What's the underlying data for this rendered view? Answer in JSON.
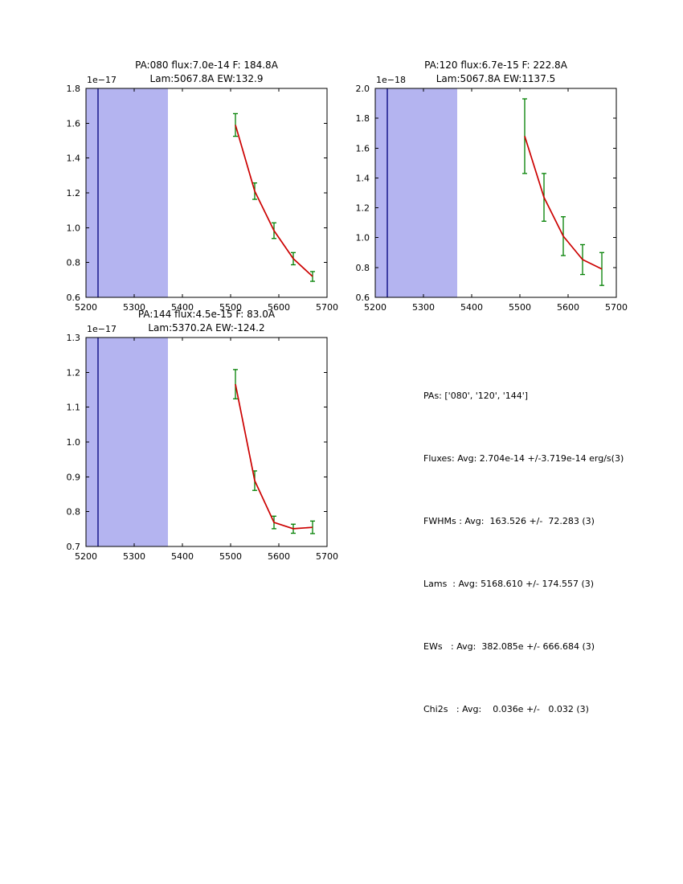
{
  "figure": {
    "background": "#ffffff"
  },
  "summary": {
    "lines": [
      "PAs: ['080', '120', '144']",
      "Fluxes: Avg: 2.704e-14 +/-3.719e-14 erg/s(3)",
      "FWHMs : Avg:  163.526 +/-  72.283 (3)",
      "Lams  : Avg: 5168.610 +/- 174.557 (3)",
      "EWs   : Avg:  382.085e +/- 666.684 (3)",
      "Chi2s   : Avg:    0.036e +/-   0.032 (3)"
    ]
  },
  "chart_data": [
    {
      "type": "line",
      "title": "PA:080 flux:7.0e-14 F: 184.8A",
      "subtitle": "Lam:5067.8A EW:132.9",
      "y_offset_label": "1e−17",
      "xlim": [
        5200,
        5700
      ],
      "ylim": [
        0.6,
        1.8
      ],
      "xtick_vals": [
        5200,
        5300,
        5400,
        5500,
        5600,
        5700
      ],
      "xtick_labels": [
        "5200",
        "5300",
        "5400",
        "5500",
        "5600",
        "5700"
      ],
      "ytick_vals": [
        0.6,
        0.8,
        1.0,
        1.2,
        1.4,
        1.6,
        1.8
      ],
      "ytick_labels": [
        "0.6",
        "0.8",
        "1.0",
        "1.2",
        "1.4",
        "1.6",
        "1.8"
      ],
      "grid": false,
      "shaded_band": {
        "x0": 5200,
        "x1": 5370,
        "color": "#b4b4f0"
      },
      "vline": {
        "x": 5225,
        "color": "#202090"
      },
      "series": {
        "name": "spectrum-pa080",
        "x": [
          5510,
          5550,
          5590,
          5630,
          5670
        ],
        "y": [
          1.59,
          1.21,
          0.983,
          0.822,
          0.72
        ],
        "yerr": [
          0.065,
          0.047,
          0.045,
          0.035,
          0.028
        ],
        "line_color": "#cc0000",
        "error_color": "#007f00"
      }
    },
    {
      "type": "line",
      "title": "PA:120 flux:6.7e-15 F: 222.8A",
      "subtitle": "Lam:5067.8A EW:1137.5",
      "y_offset_label": "1e−18",
      "xlim": [
        5200,
        5700
      ],
      "ylim": [
        0.6,
        2.0
      ],
      "xtick_vals": [
        5200,
        5300,
        5400,
        5500,
        5600,
        5700
      ],
      "xtick_labels": [
        "5200",
        "5300",
        "5400",
        "5500",
        "5600",
        "5700"
      ],
      "ytick_vals": [
        0.6,
        0.8,
        1.0,
        1.2,
        1.4,
        1.6,
        1.8,
        2.0
      ],
      "ytick_labels": [
        "0.6",
        "0.8",
        "1.0",
        "1.2",
        "1.4",
        "1.6",
        "1.8",
        "2.0"
      ],
      "grid": false,
      "shaded_band": {
        "x0": 5200,
        "x1": 5370,
        "color": "#b4b4f0"
      },
      "vline": {
        "x": 5225,
        "color": "#202090"
      },
      "series": {
        "name": "spectrum-pa120",
        "x": [
          5510,
          5550,
          5590,
          5630,
          5670
        ],
        "y": [
          1.68,
          1.27,
          1.01,
          0.853,
          0.79
        ],
        "yerr": [
          0.25,
          0.16,
          0.13,
          0.1,
          0.11
        ],
        "line_color": "#cc0000",
        "error_color": "#007f00"
      }
    },
    {
      "type": "line",
      "title": "PA:144 flux:4.5e-15 F: 83.0A",
      "subtitle": "Lam:5370.2A EW:-124.2",
      "y_offset_label": "1e−17",
      "xlim": [
        5200,
        5700
      ],
      "ylim": [
        0.7,
        1.3
      ],
      "xtick_vals": [
        5200,
        5300,
        5400,
        5500,
        5600,
        5700
      ],
      "xtick_labels": [
        "5200",
        "5300",
        "5400",
        "5500",
        "5600",
        "5700"
      ],
      "ytick_vals": [
        0.7,
        0.8,
        0.9,
        1.0,
        1.1,
        1.2,
        1.3
      ],
      "ytick_labels": [
        "0.7",
        "0.8",
        "0.9",
        "1.0",
        "1.1",
        "1.2",
        "1.3"
      ],
      "grid": false,
      "shaded_band": {
        "x0": 5200,
        "x1": 5370,
        "color": "#b4b4f0"
      },
      "vline": {
        "x": 5225,
        "color": "#202090"
      },
      "series": {
        "name": "spectrum-pa144",
        "x": [
          5510,
          5550,
          5590,
          5630,
          5670
        ],
        "y": [
          1.166,
          0.889,
          0.769,
          0.751,
          0.755
        ],
        "yerr": [
          0.042,
          0.028,
          0.018,
          0.013,
          0.018
        ],
        "line_color": "#cc0000",
        "error_color": "#007f00"
      }
    }
  ]
}
